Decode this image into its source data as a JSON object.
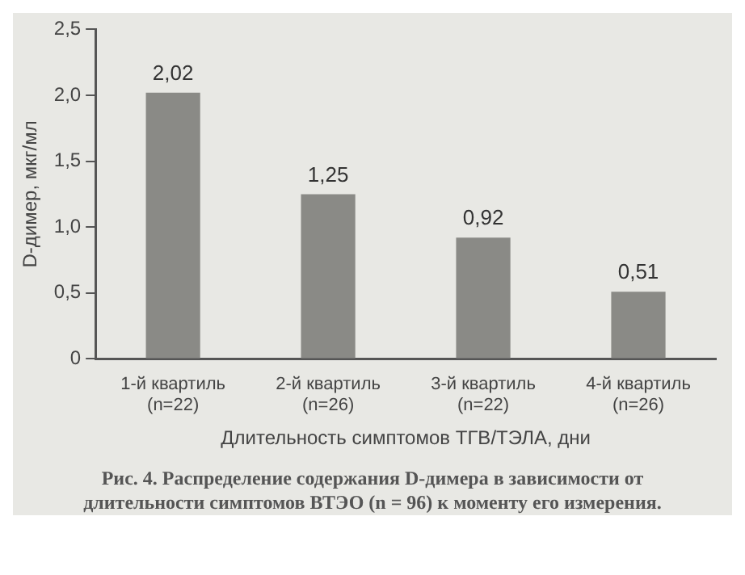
{
  "chart_data": {
    "type": "bar",
    "xlabel": "Длительность симптомов ТГВ/ТЭЛА, дни",
    "ylabel": "D-димер, мкг/мл",
    "categories": [
      "1-й квартиль\n(n=22)",
      "2-й квартиль\n(n=26)",
      "3-й квартиль\n(n=22)",
      "4-й квартиль\n(n=26)"
    ],
    "values": [
      2.02,
      1.25,
      0.92,
      0.51
    ],
    "value_labels": [
      "2,02",
      "1,25",
      "0,92",
      "0,51"
    ],
    "color": "#8a8a86",
    "ylim": [
      0,
      2.5
    ],
    "yticks": [
      0,
      {
        "value": 0.5,
        "label": "0,5"
      },
      {
        "value": 1,
        "label": "1,0"
      },
      {
        "value": 1.5,
        "label": "1,5"
      },
      {
        "value": 2,
        "label": "2,0"
      },
      {
        "value": 2.5,
        "label": "2,5"
      }
    ],
    "grid": false,
    "annotations": [
      "Рис. 4. Распределение содержания D-димера в зависимости от длительности симптомов ВТЭО (n = 96) к моменту его измерения."
    ]
  }
}
